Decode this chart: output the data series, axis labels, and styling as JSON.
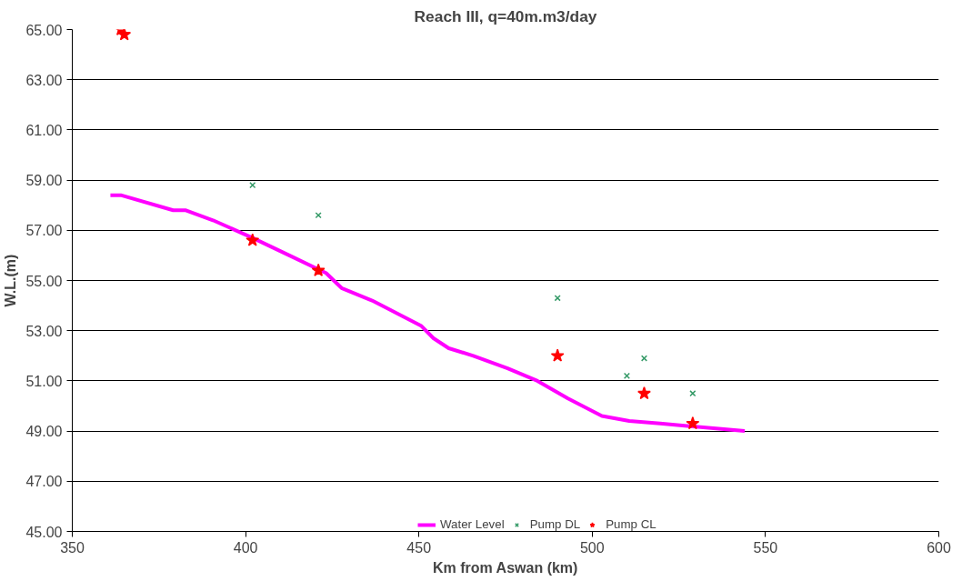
{
  "chart_data": {
    "type": "line",
    "title": "Reach III, q=40m.m3/day",
    "xlabel": "Km from Aswan (km)",
    "ylabel": "W.L.(m)",
    "xlim": [
      350,
      600
    ],
    "xticks": [
      350,
      400,
      450,
      500,
      550,
      600
    ],
    "ylim": [
      45,
      65
    ],
    "yticks": [
      {
        "value": 45,
        "label": "45.00"
      },
      {
        "value": 47,
        "label": "47.00"
      },
      {
        "value": 49,
        "label": "49.00"
      },
      {
        "value": 51,
        "label": "51.00"
      },
      {
        "value": 53,
        "label": "53.00"
      },
      {
        "value": 55,
        "label": "55.00"
      },
      {
        "value": 57,
        "label": "57.00"
      },
      {
        "value": 59,
        "label": "59.00"
      },
      {
        "value": 61,
        "label": "61.00"
      },
      {
        "value": 63,
        "label": "63.00"
      },
      {
        "value": 65,
        "label": "65.00"
      }
    ],
    "grid": "y",
    "legend": "bottom",
    "series": [
      {
        "name": "Water Level",
        "color": "#ff00ff",
        "marker": "none",
        "x": [
          361,
          364,
          379.1,
          382.6,
          390.6,
          402,
          412.6,
          423.2,
          427.7,
          436.5,
          450.6,
          454.2,
          458.6,
          465.7,
          475.6,
          484.2,
          493,
          502.8,
          510.7,
          519.6,
          544
        ],
        "values": [
          58.4,
          58.4,
          57.8,
          57.8,
          57.4,
          56.7,
          56.0,
          55.3,
          54.7,
          54.2,
          53.2,
          52.7,
          52.3,
          52.0,
          51.5,
          51.0,
          50.3,
          49.6,
          49.4,
          49.3,
          49.0
        ]
      },
      {
        "name": "Pump DL",
        "type": "scatter",
        "color": "#339966",
        "marker": "cross",
        "x": [
          402,
          421,
          490,
          510,
          515,
          529
        ],
        "values": [
          58.8,
          57.6,
          54.3,
          51.2,
          51.9,
          50.5
        ]
      },
      {
        "name": "Pump CL",
        "type": "scatter",
        "color": "#ff0000",
        "marker": "star",
        "x": [
          364,
          365,
          402,
          421,
          490,
          515,
          529
        ],
        "values": [
          65.0,
          64.8,
          56.6,
          55.4,
          52.0,
          50.5,
          49.3
        ]
      }
    ]
  }
}
